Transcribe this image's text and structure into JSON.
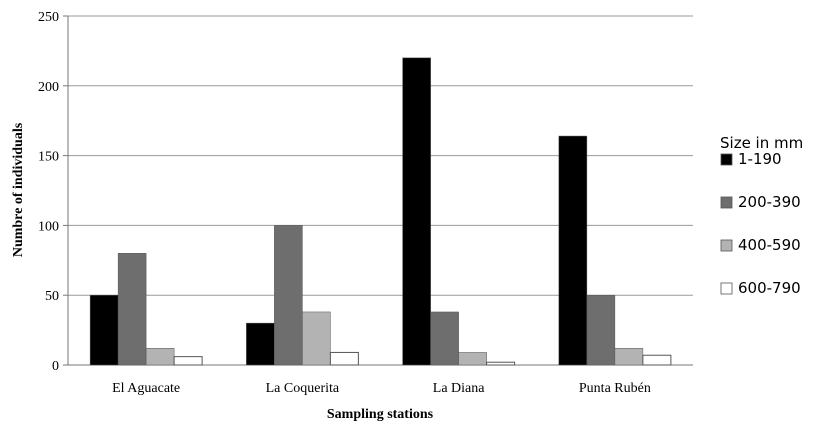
{
  "chart_data": {
    "type": "bar",
    "title": "",
    "xlabel": "Sampling stations",
    "ylabel": "Numbre of individuals",
    "categories": [
      "El Aguacate",
      "La Coquerita",
      "La Diana",
      "Punta Rubén"
    ],
    "series": [
      {
        "name": "1-190",
        "values": [
          50,
          30,
          220,
          164
        ],
        "color": "#000000"
      },
      {
        "name": "200-390",
        "values": [
          80,
          100,
          38,
          50
        ],
        "color": "#6e6e6e"
      },
      {
        "name": "400-590",
        "values": [
          12,
          38,
          9,
          12
        ],
        "color": "#b3b3b3"
      },
      {
        "name": "600-790",
        "values": [
          6,
          9,
          2,
          7
        ],
        "color": "#ffffff"
      }
    ],
    "ylim": [
      0,
      250
    ],
    "yticks": [
      0,
      50,
      100,
      150,
      200,
      250
    ],
    "grid": true,
    "legend": {
      "title": "Size in mm",
      "position": "right"
    }
  }
}
